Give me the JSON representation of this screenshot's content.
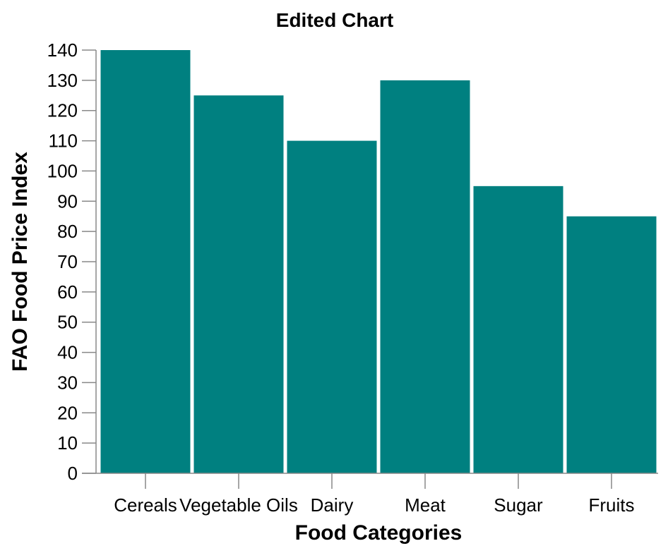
{
  "chart_data": {
    "type": "bar",
    "title": "Edited Chart",
    "xlabel": "Food Categories",
    "ylabel": "FAO Food Price Index",
    "categories": [
      "Cereals",
      "Vegetable Oils",
      "Dairy",
      "Meat",
      "Sugar",
      "Fruits"
    ],
    "values": [
      140,
      125,
      110,
      130,
      95,
      85
    ],
    "ylim": [
      0,
      140
    ],
    "yticks": [
      0,
      10,
      20,
      30,
      40,
      50,
      60,
      70,
      80,
      90,
      100,
      110,
      120,
      130,
      140
    ],
    "grid": false,
    "bar_color": "#008080"
  }
}
